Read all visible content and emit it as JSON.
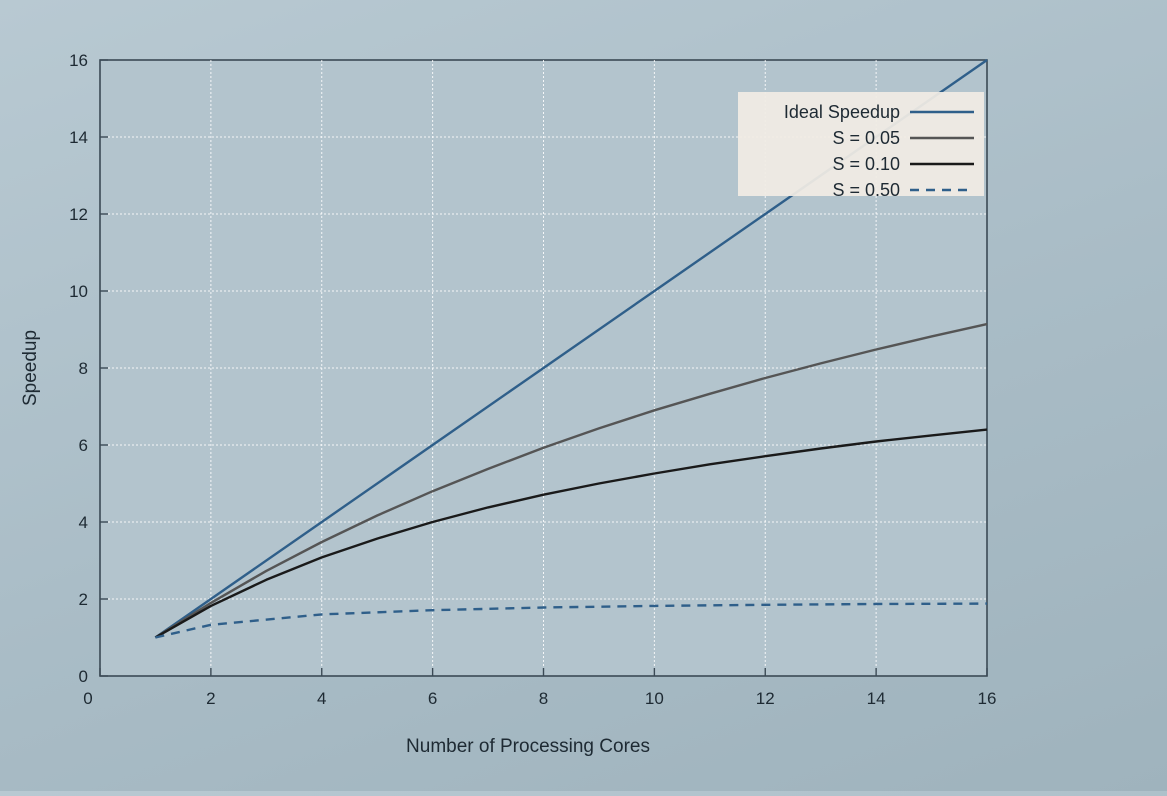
{
  "chart_data": {
    "type": "line",
    "title": "",
    "xlabel": "Number of Processing Cores",
    "ylabel": "Speedup",
    "xlim": [
      0,
      16
    ],
    "ylim": [
      0,
      16
    ],
    "xticks": [
      0,
      2,
      4,
      6,
      8,
      10,
      12,
      14,
      16
    ],
    "yticks": [
      0,
      2,
      4,
      6,
      8,
      10,
      12,
      14,
      16
    ],
    "grid": true,
    "legend_position": "top-right",
    "series": [
      {
        "name": "Ideal Speedup",
        "color": "#2f5f8a",
        "style": "solid",
        "x": [
          1,
          2,
          4,
          6,
          8,
          10,
          12,
          14,
          16
        ],
        "y": [
          1,
          2,
          4,
          6,
          8,
          10,
          12,
          14,
          16
        ]
      },
      {
        "name": "S = 0.05",
        "color": "#555555",
        "style": "solid",
        "x": [
          1,
          2,
          3,
          4,
          5,
          6,
          7,
          8,
          9,
          10,
          11,
          12,
          13,
          14,
          15,
          16
        ],
        "y": [
          1,
          1.9,
          2.73,
          3.48,
          4.17,
          4.8,
          5.38,
          5.93,
          6.43,
          6.9,
          7.33,
          7.74,
          8.12,
          8.48,
          8.82,
          9.14
        ]
      },
      {
        "name": "S = 0.10",
        "color": "#1a1a1a",
        "style": "solid",
        "x": [
          1,
          2,
          3,
          4,
          5,
          6,
          7,
          8,
          9,
          10,
          11,
          12,
          13,
          14,
          15,
          16
        ],
        "y": [
          1,
          1.82,
          2.5,
          3.08,
          3.57,
          4.0,
          4.38,
          4.71,
          5.0,
          5.26,
          5.5,
          5.71,
          5.91,
          6.09,
          6.25,
          6.4
        ]
      },
      {
        "name": "S = 0.50",
        "color": "#2f5f8a",
        "style": "dashed",
        "x": [
          1,
          2,
          4,
          6,
          8,
          10,
          12,
          14,
          16
        ],
        "y": [
          1,
          1.33,
          1.6,
          1.71,
          1.78,
          1.82,
          1.85,
          1.87,
          1.88
        ]
      }
    ]
  }
}
